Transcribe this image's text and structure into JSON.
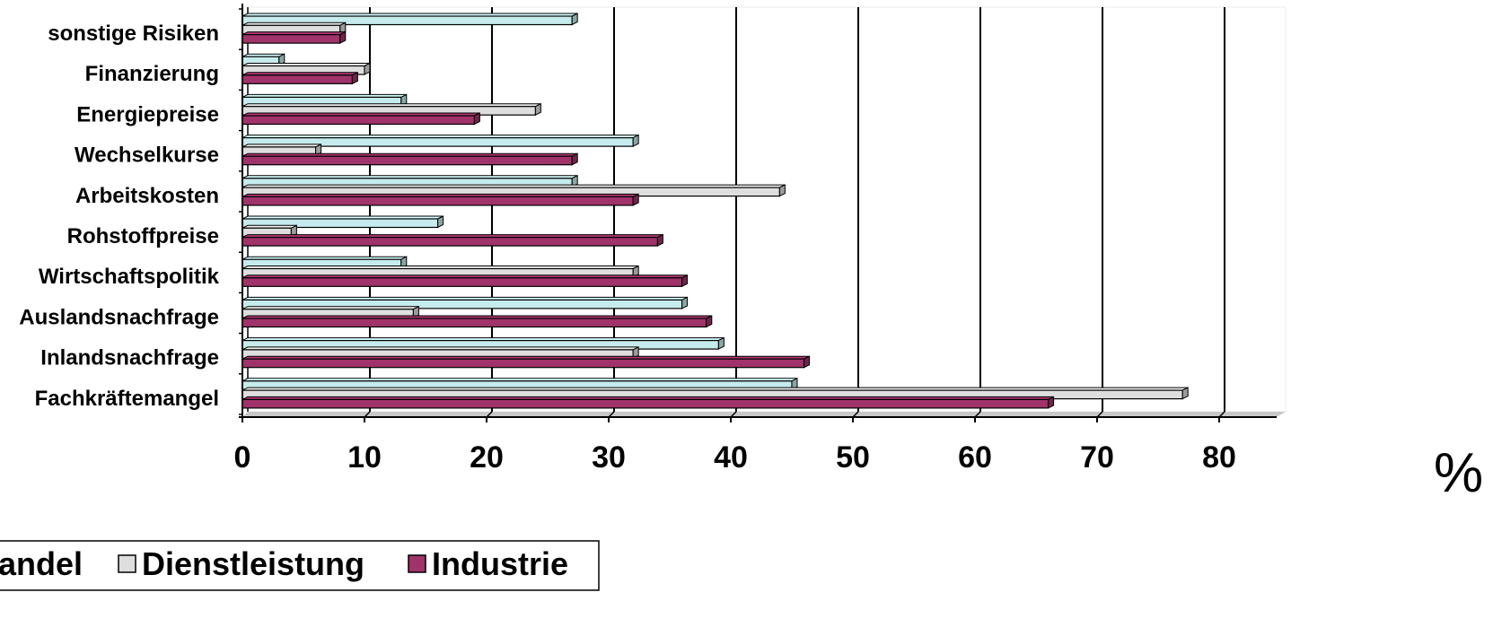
{
  "chart_data": {
    "type": "bar",
    "orientation": "horizontal",
    "style": "3d",
    "categories": [
      "sonstige Risiken",
      "Finanzierung",
      "Energiepreise",
      "Wechselkurse",
      "Arbeitskosten",
      "Rohstoffpreise",
      "Wirtschaftspolitik",
      "Auslandsnachfrage",
      "Inlandsnachfrage",
      "Fachkräftemangel"
    ],
    "series": [
      {
        "name": "Handel",
        "legend_label": "andel",
        "color": "#c6ebec",
        "values": [
          27,
          3,
          13,
          32,
          27,
          16,
          13,
          36,
          39,
          45
        ]
      },
      {
        "name": "Dienstleistung",
        "legend_label": "Dienstleistung",
        "color": "#dedede",
        "values": [
          8,
          10,
          24,
          6,
          44,
          4,
          32,
          14,
          32,
          77
        ]
      },
      {
        "name": "Industrie",
        "legend_label": "Industrie",
        "color": "#a0336a",
        "values": [
          8,
          9,
          19,
          27,
          32,
          34,
          36,
          38,
          46,
          66
        ]
      }
    ],
    "xlim": [
      0,
      85
    ],
    "xticks": [
      0,
      10,
      20,
      30,
      40,
      50,
      60,
      70,
      80
    ],
    "xlabel": "%",
    "grid": true,
    "legend_position": "bottom-left"
  }
}
